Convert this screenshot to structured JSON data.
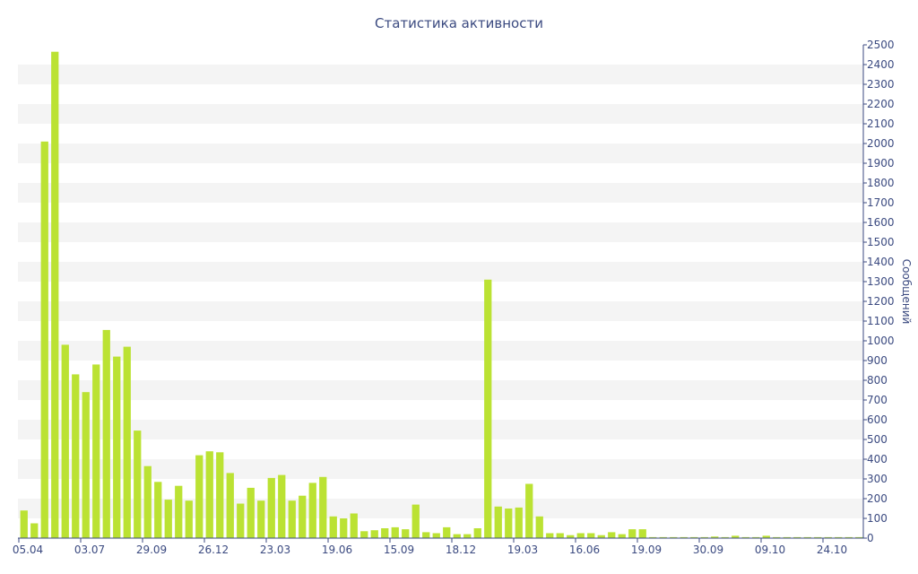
{
  "chart_data": {
    "type": "bar",
    "title": "Статистика активности",
    "ylabel": "Сообщений",
    "ylim": [
      0,
      2500
    ],
    "ytick_step": 100,
    "xtick_labels": [
      "05.04",
      "03.07",
      "29.09",
      "26.12",
      "23.03",
      "19.06",
      "15.09",
      "18.12",
      "19.03",
      "16.06",
      "19.09",
      "30.09",
      "09.10",
      "24.10"
    ],
    "grid": "alternating horizontal bands",
    "colors": {
      "bar": "#bbe233",
      "band": "#f4f4f4",
      "axis": "#3b4a80"
    },
    "values": [
      140,
      75,
      2010,
      2465,
      980,
      830,
      740,
      880,
      1055,
      920,
      970,
      545,
      365,
      285,
      195,
      265,
      190,
      420,
      440,
      435,
      330,
      175,
      255,
      190,
      305,
      320,
      190,
      215,
      280,
      310,
      110,
      100,
      125,
      35,
      40,
      50,
      55,
      45,
      170,
      30,
      25,
      55,
      20,
      20,
      50,
      1310,
      160,
      150,
      155,
      275,
      110,
      25,
      25,
      15,
      25,
      25,
      15,
      30,
      20,
      45,
      45,
      5,
      5,
      5,
      5,
      5,
      5,
      8,
      5,
      12,
      5,
      5,
      12,
      5,
      5,
      5,
      5,
      5,
      5,
      5,
      5,
      5
    ]
  }
}
